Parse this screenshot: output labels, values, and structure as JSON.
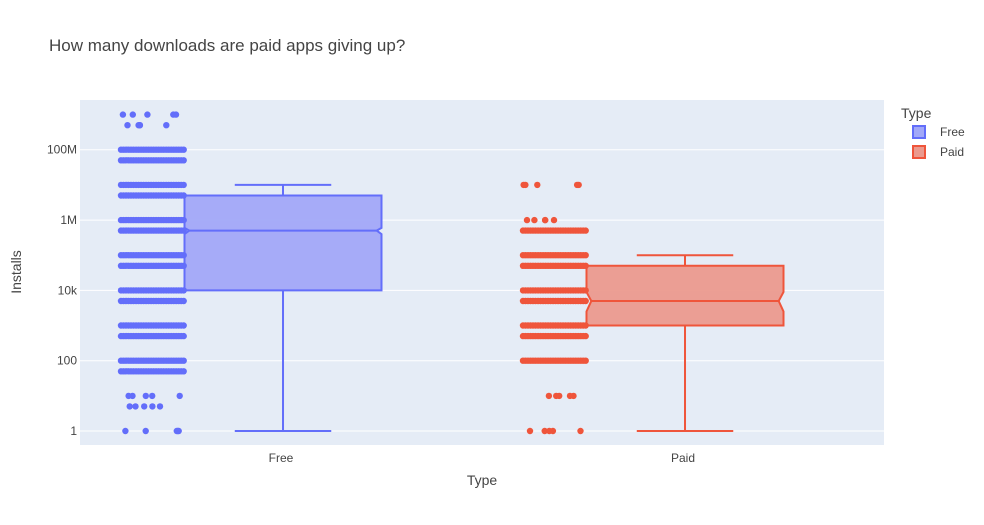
{
  "chart_data": {
    "type": "box",
    "title": "How many downloads are paid apps giving up?",
    "xlabel": "Type",
    "ylabel": "Installs",
    "y_scale": "log",
    "y_range": [
      0.4,
      2600000000
    ],
    "y_ticks": [
      {
        "value": 1,
        "label": "1"
      },
      {
        "value": 100,
        "label": "100"
      },
      {
        "value": 10000,
        "label": "10k"
      },
      {
        "value": 1000000,
        "label": "1M"
      },
      {
        "value": 100000000,
        "label": "100M"
      }
    ],
    "grid": true,
    "legend": {
      "title": "Type",
      "position": "top-right"
    },
    "categories": [
      "Free",
      "Paid"
    ],
    "series": [
      {
        "name": "Free",
        "color": "#636efa",
        "box_fill": "#a2a8f8",
        "stats": {
          "min": 1,
          "q1": 10000,
          "median": 500000,
          "q3": 5000000,
          "max": 10000000,
          "notch_low": 400000,
          "notch_high": 600000
        },
        "point_levels": [
          1,
          5,
          10,
          50,
          100,
          500,
          1000,
          5000,
          10000,
          50000,
          100000,
          500000,
          1000000,
          5000000,
          10000000,
          50000000,
          100000000,
          500000000,
          1000000000
        ]
      },
      {
        "name": "Paid",
        "color": "#ef553b",
        "box_fill": "#eb9a8e",
        "stats": {
          "min": 1,
          "q1": 1000,
          "median": 5000,
          "q3": 50000,
          "max": 100000,
          "notch_low": 2500,
          "notch_high": 9000
        },
        "point_levels": [
          1,
          10,
          100,
          500,
          1000,
          5000,
          10000,
          50000,
          100000,
          500000,
          1000000,
          10000000
        ]
      }
    ]
  }
}
